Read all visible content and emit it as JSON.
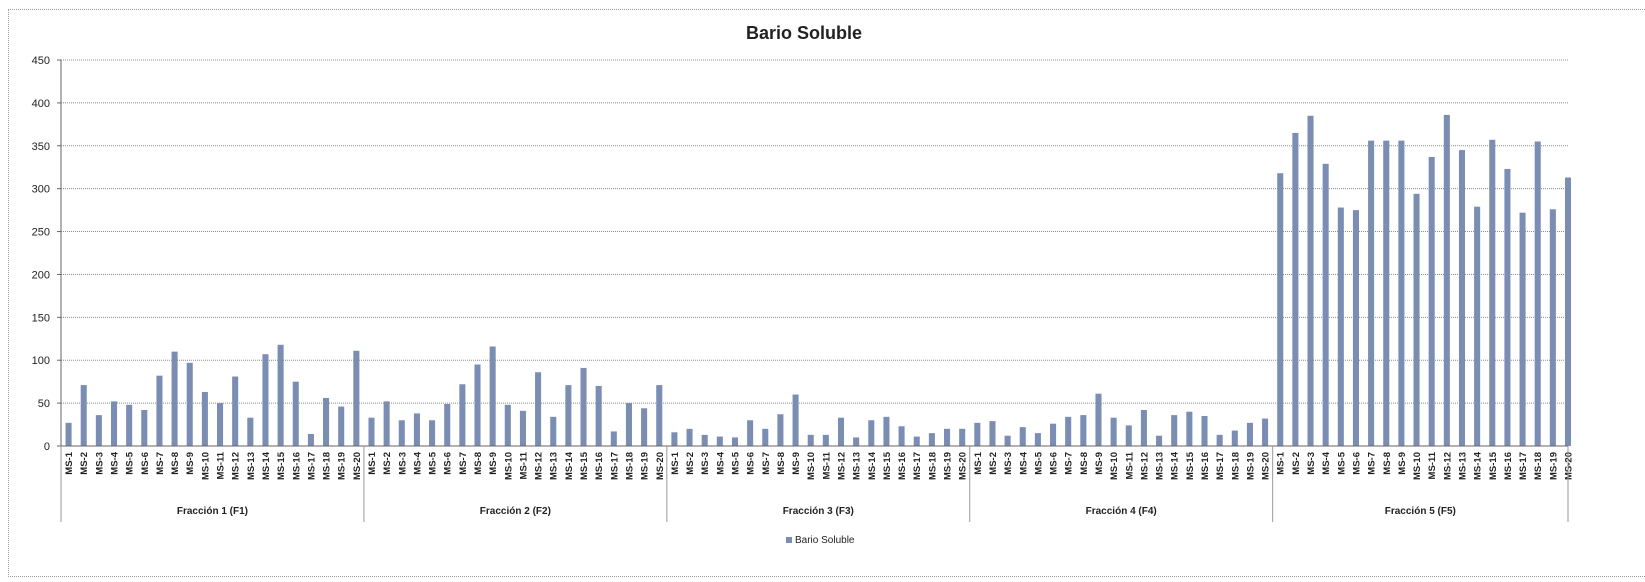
{
  "chart_data": {
    "type": "bar",
    "title": "Bario Soluble",
    "xlabel": "",
    "ylabel": "",
    "ylim": [
      0,
      450
    ],
    "yticks": [
      0,
      50,
      100,
      150,
      200,
      250,
      300,
      350,
      400,
      450
    ],
    "grid": true,
    "legend_position": "bottom",
    "bar_color": "#7c8db4",
    "groups": [
      "Fracción 1 (F1)",
      "Fracción 2 (F2)",
      "Fracción 3 (F3)",
      "Fracción 4 (F4)",
      "Fracción 5 (F5)"
    ],
    "categories": [
      "MS-1",
      "MS-2",
      "MS-3",
      "MS-4",
      "MS-5",
      "MS-6",
      "MS-7",
      "MS-8",
      "MS-9",
      "MS-10",
      "MS-11",
      "MS-12",
      "MS-13",
      "MS-14",
      "MS-15",
      "MS-16",
      "MS-17",
      "MS-18",
      "MS-19",
      "MS-20"
    ],
    "series": [
      {
        "name": "Bario Soluble",
        "values": [
          [
            27,
            71,
            36,
            52,
            48,
            42,
            82,
            110,
            97,
            63,
            50,
            81,
            33,
            107,
            118,
            75,
            14,
            56,
            46,
            111
          ],
          [
            33,
            52,
            30,
            38,
            30,
            49,
            72,
            95,
            116,
            48,
            41,
            86,
            34,
            71,
            91,
            70,
            17,
            50,
            44,
            71
          ],
          [
            16,
            20,
            13,
            11,
            10,
            30,
            20,
            37,
            60,
            13,
            13,
            33,
            10,
            30,
            34,
            23,
            11,
            15,
            20,
            20
          ],
          [
            27,
            29,
            12,
            22,
            15,
            26,
            34,
            36,
            61,
            33,
            24,
            42,
            12,
            36,
            40,
            35,
            13,
            18,
            27,
            32
          ],
          [
            318,
            365,
            385,
            329,
            278,
            275,
            356,
            356,
            356,
            294,
            337,
            386,
            345,
            279,
            357,
            323,
            272,
            355,
            276,
            313
          ]
        ]
      }
    ]
  }
}
